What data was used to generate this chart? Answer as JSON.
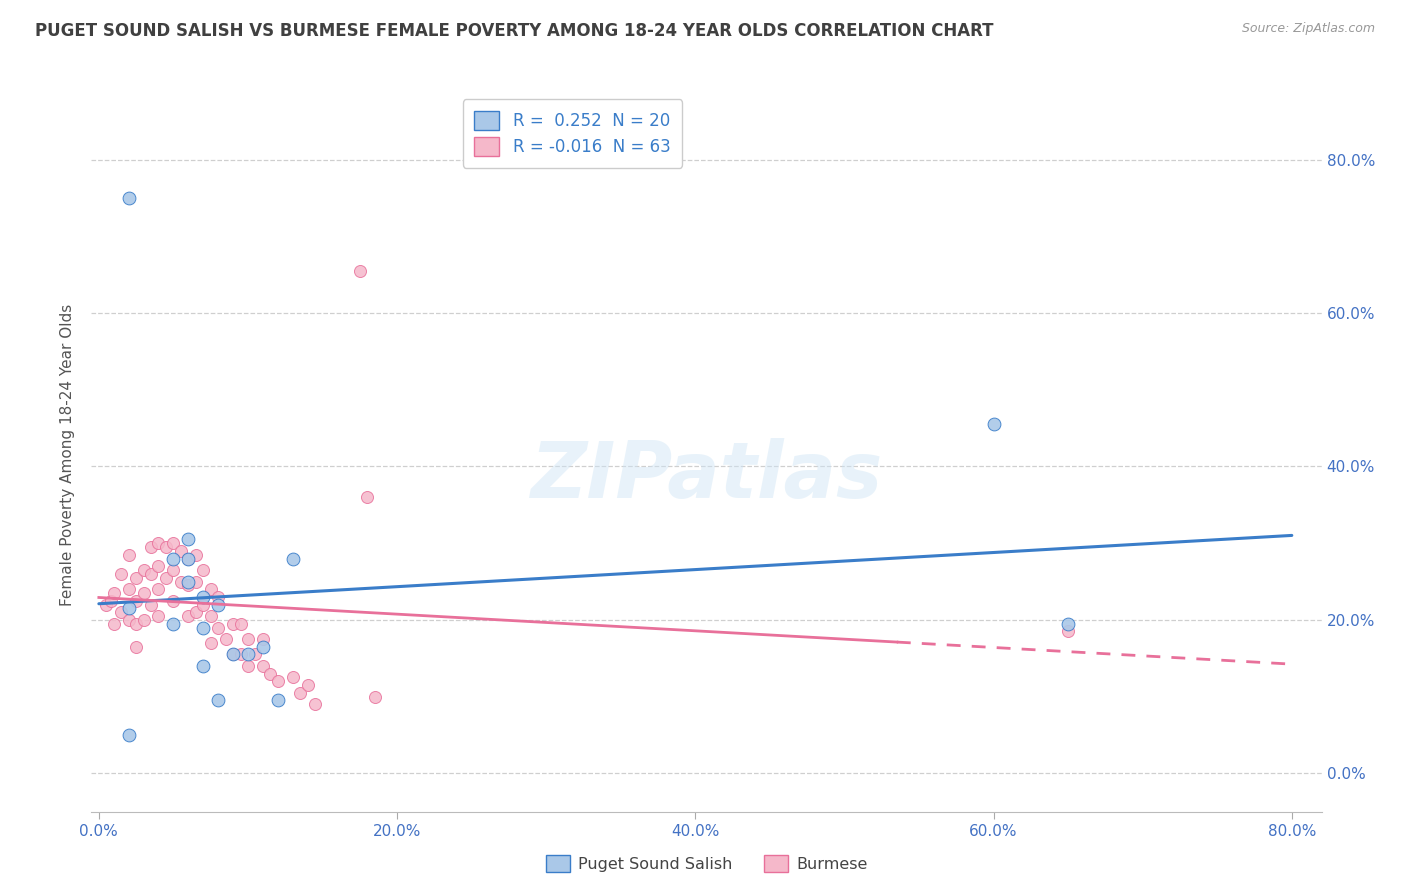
{
  "title": "PUGET SOUND SALISH VS BURMESE FEMALE POVERTY AMONG 18-24 YEAR OLDS CORRELATION CHART",
  "source": "Source: ZipAtlas.com",
  "ylabel": "Female Poverty Among 18-24 Year Olds",
  "xlim": [
    -0.005,
    0.82
  ],
  "ylim": [
    -0.05,
    0.88
  ],
  "x_ticks": [
    0.0,
    0.2,
    0.4,
    0.6,
    0.8
  ],
  "x_tick_labels": [
    "0.0%",
    "20.0%",
    "40.0%",
    "60.0%",
    "80.0%"
  ],
  "y_ticks": [
    0.0,
    0.2,
    0.4,
    0.6,
    0.8
  ],
  "y_tick_labels_right": [
    "0.0%",
    "20.0%",
    "40.0%",
    "60.0%",
    "80.0%"
  ],
  "legend_label1": "Puget Sound Salish",
  "legend_label2": "Burmese",
  "R1": "0.252",
  "N1": "20",
  "R2": "-0.016",
  "N2": "63",
  "color1": "#aac8e8",
  "color2": "#f5b8ca",
  "line_color1": "#3a7dc9",
  "line_color2": "#e8709a",
  "watermark": "ZIPatlas",
  "bg_color": "#ffffff",
  "grid_color": "#bbbbbb",
  "title_color": "#404040",
  "axis_tick_color": "#4472c4",
  "puget_x": [
    0.02,
    0.05,
    0.06,
    0.06,
    0.07,
    0.07,
    0.08,
    0.09,
    0.1,
    0.11,
    0.12,
    0.13,
    0.02,
    0.05,
    0.06,
    0.07,
    0.08,
    0.02,
    0.6,
    0.65
  ],
  "puget_y": [
    0.75,
    0.28,
    0.305,
    0.25,
    0.23,
    0.19,
    0.22,
    0.155,
    0.155,
    0.165,
    0.095,
    0.28,
    0.215,
    0.195,
    0.28,
    0.14,
    0.095,
    0.05,
    0.455,
    0.195
  ],
  "burmese_x": [
    0.005,
    0.008,
    0.01,
    0.01,
    0.015,
    0.015,
    0.02,
    0.02,
    0.02,
    0.025,
    0.025,
    0.025,
    0.025,
    0.03,
    0.03,
    0.03,
    0.035,
    0.035,
    0.035,
    0.04,
    0.04,
    0.04,
    0.04,
    0.045,
    0.045,
    0.05,
    0.05,
    0.05,
    0.055,
    0.055,
    0.06,
    0.06,
    0.06,
    0.065,
    0.065,
    0.065,
    0.07,
    0.07,
    0.075,
    0.075,
    0.075,
    0.08,
    0.08,
    0.085,
    0.09,
    0.09,
    0.095,
    0.095,
    0.1,
    0.1,
    0.105,
    0.11,
    0.11,
    0.115,
    0.12,
    0.13,
    0.135,
    0.14,
    0.145,
    0.18,
    0.185,
    0.65,
    0.175
  ],
  "burmese_y": [
    0.22,
    0.225,
    0.235,
    0.195,
    0.26,
    0.21,
    0.285,
    0.24,
    0.2,
    0.255,
    0.225,
    0.195,
    0.165,
    0.265,
    0.235,
    0.2,
    0.295,
    0.26,
    0.22,
    0.3,
    0.27,
    0.24,
    0.205,
    0.295,
    0.255,
    0.3,
    0.265,
    0.225,
    0.29,
    0.25,
    0.28,
    0.245,
    0.205,
    0.285,
    0.25,
    0.21,
    0.265,
    0.22,
    0.24,
    0.205,
    0.17,
    0.23,
    0.19,
    0.175,
    0.195,
    0.155,
    0.195,
    0.155,
    0.175,
    0.14,
    0.155,
    0.175,
    0.14,
    0.13,
    0.12,
    0.125,
    0.105,
    0.115,
    0.09,
    0.36,
    0.1,
    0.185,
    0.655
  ]
}
